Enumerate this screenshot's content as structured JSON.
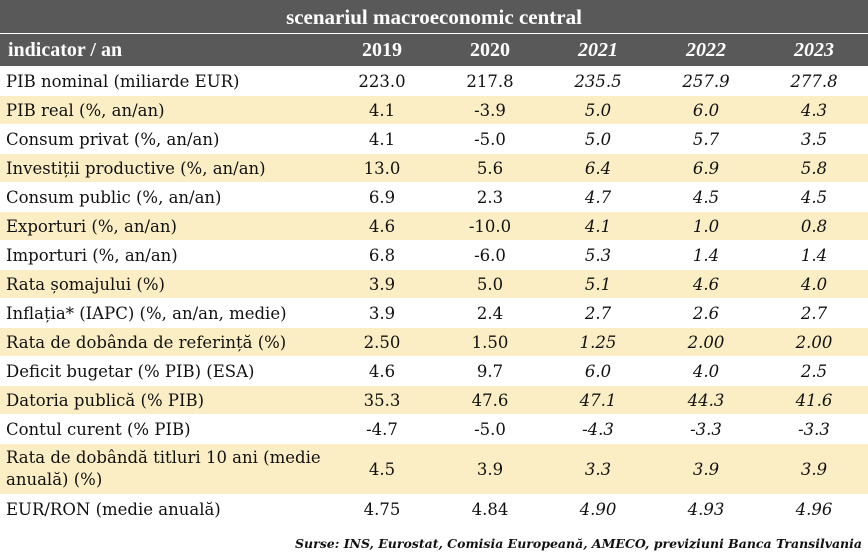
{
  "title": "scenariul macroeconomic central",
  "header": {
    "indicator": "indicator / an",
    "years": [
      "2019",
      "2020",
      "2021",
      "2022",
      "2023"
    ]
  },
  "rows": [
    {
      "label": "PIB nominal (miliarde EUR)",
      "values": [
        "223.0",
        "217.8",
        "235.5",
        "257.9",
        "277.8"
      ]
    },
    {
      "label": "PIB real (%, an/an)",
      "values": [
        "4.1",
        "-3.9",
        "5.0",
        "6.0",
        "4.3"
      ]
    },
    {
      "label": "Consum privat (%, an/an)",
      "values": [
        "4.1",
        "-5.0",
        "5.0",
        "5.7",
        "3.5"
      ]
    },
    {
      "label": "Investiții productive (%, an/an)",
      "values": [
        "13.0",
        "5.6",
        "6.4",
        "6.9",
        "5.8"
      ]
    },
    {
      "label": "Consum public (%, an/an)",
      "values": [
        "6.9",
        "2.3",
        "4.7",
        "4.5",
        "4.5"
      ]
    },
    {
      "label": "Exporturi (%, an/an)",
      "values": [
        "4.6",
        "-10.0",
        "4.1",
        "1.0",
        "0.8"
      ]
    },
    {
      "label": "Importuri (%, an/an)",
      "values": [
        "6.8",
        "-6.0",
        "5.3",
        "1.4",
        "1.4"
      ]
    },
    {
      "label": "Rata șomajului (%)",
      "values": [
        "3.9",
        "5.0",
        "5.1",
        "4.6",
        "4.0"
      ]
    },
    {
      "label": "Inflația* (IAPC) (%, an/an, medie)",
      "values": [
        "3.9",
        "2.4",
        "2.7",
        "2.6",
        "2.7"
      ]
    },
    {
      "label": "Rata de dobânda de referință (%)",
      "values": [
        "2.50",
        "1.50",
        "1.25",
        "2.00",
        "2.00"
      ]
    },
    {
      "label": "Deficit bugetar (% PIB) (ESA)",
      "values": [
        "4.6",
        "9.7",
        "6.0",
        "4.0",
        "2.5"
      ]
    },
    {
      "label": "Datoria publică (% PIB)",
      "values": [
        "35.3",
        "47.6",
        "47.1",
        "44.3",
        "41.6"
      ]
    },
    {
      "label": "Contul curent (% PIB)",
      "values": [
        "-4.7",
        "-5.0",
        "-4.3",
        "-3.3",
        "-3.3"
      ]
    },
    {
      "label": "Rata de dobândă titluri 10 ani (medie anuală) (%)",
      "values": [
        "4.5",
        "3.9",
        "3.3",
        "3.9",
        "3.9"
      ]
    },
    {
      "label": "EUR/RON (medie anuală)",
      "values": [
        "4.75",
        "4.84",
        "4.90",
        "4.93",
        "4.96"
      ]
    }
  ],
  "source": "Surse: INS, Eurostat, Comisia Europeană, AMECO, previziuni Banca Transilvania",
  "colors": {
    "header_bg": "#595959",
    "stripe": "#fbeec5"
  }
}
